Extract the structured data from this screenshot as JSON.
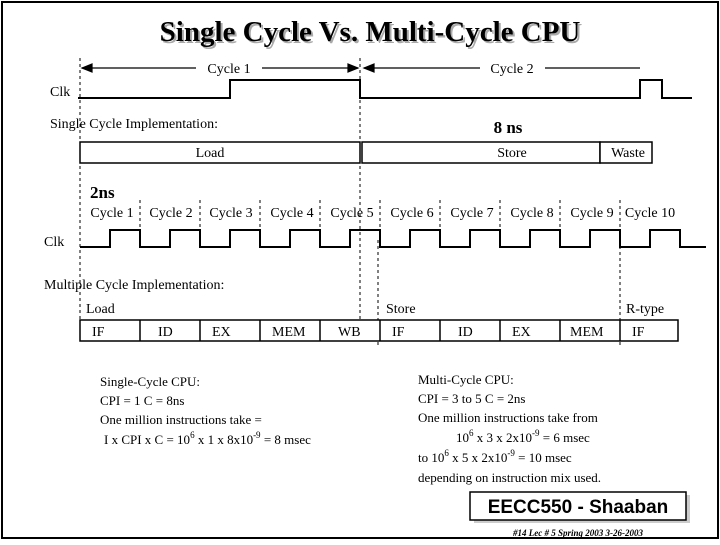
{
  "title": "Single Cycle Vs.  Multi-Cycle CPU",
  "top": {
    "cycle1": "Cycle 1",
    "cycle2": "Cycle 2",
    "clk": "Clk",
    "single_impl": "Single Cycle Implementation:",
    "duration": "8 ns",
    "load": "Load",
    "store": "Store",
    "waste": "Waste"
  },
  "mid": {
    "duration": "2ns",
    "cycles": [
      "Cycle 1",
      "Cycle 2",
      "Cycle 3",
      "Cycle 4",
      "Cycle 5",
      "Cycle 6",
      "Cycle 7",
      "Cycle 8",
      "Cycle 9",
      "Cycle 10"
    ],
    "clk": "Clk"
  },
  "multi": {
    "impl": "Multiple Cycle Implementation:",
    "load": "Load",
    "store": "Store",
    "rtype": "R-type",
    "stages": [
      "IF",
      "ID",
      "EX",
      "MEM",
      "WB",
      "IF",
      "ID",
      "EX",
      "MEM",
      "IF"
    ]
  },
  "single_notes": {
    "heading": "Single-Cycle CPU:",
    "line1": "CPI = 1   C =  8ns",
    "line2": "One million instructions take =",
    "line3_a": "I x CPI x C  =  10",
    "line3_exp1": "6",
    "line3_b": " x 1 x 8x10",
    "line3_exp2": "-9",
    "line3_c": " =  8 msec"
  },
  "multi_notes": {
    "heading": "Multi-Cycle CPU:",
    "line1": "CPI =  3  to  5      C  =  2ns",
    "line2": "One million instructions take from",
    "line3_a": "10",
    "line3_exp1": "6",
    "line3_b": " x  3  x  2x10",
    "line3_exp2": "-9",
    "line3_c": " =  6 msec",
    "line4_a": "to   10",
    "line4_exp1": "6",
    "line4_b": " x  5  x  2x10",
    "line4_exp2": "-9",
    "line4_c": " =  10 msec",
    "line5": "depending on instruction mix used."
  },
  "footer": {
    "badge": "EECC550 - Shaaban",
    "id": "#14   Lec # 5  Spring 2003  3-26-2003"
  }
}
